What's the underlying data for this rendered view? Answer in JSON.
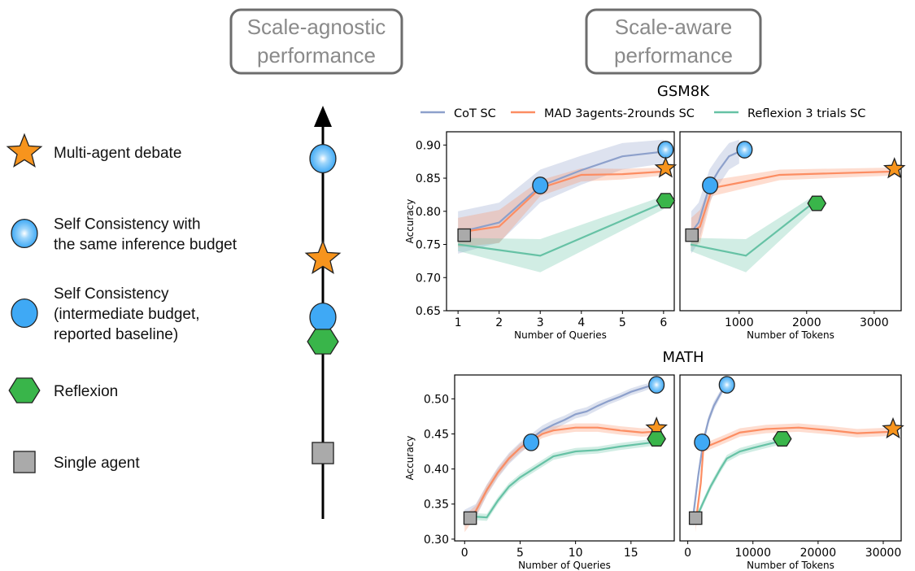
{
  "headers": {
    "agnostic_line1": "Scale-agnostic",
    "agnostic_line2": "performance",
    "aware_line1": "Scale-aware",
    "aware_line2": "performance"
  },
  "legend_left": [
    {
      "marker": "star",
      "lines": [
        "Multi-agent debate"
      ]
    },
    {
      "marker": "gradient-circle",
      "lines": [
        "Self Consistency with",
        "the same inference budget"
      ]
    },
    {
      "marker": "circle",
      "lines": [
        "Self Consistency",
        "(intermediate budget,",
        "reported baseline)"
      ]
    },
    {
      "marker": "hexagon",
      "lines": [
        "Reflexion"
      ]
    },
    {
      "marker": "square",
      "lines": [
        "Single agent"
      ]
    }
  ],
  "marker_colors": {
    "star": "#f7941d",
    "gradient-circle": "#3fa9f5",
    "circle": "#3fa9f5",
    "hexagon": "#39b54a",
    "square": "#aaaaaa"
  },
  "scale_agnostic_order_top_to_bottom": [
    "gradient-circle",
    "star",
    "circle",
    "hexagon",
    "square"
  ],
  "legend_top": [
    {
      "label": "CoT SC",
      "color": "#8da0cb"
    },
    {
      "label": "MAD 3agents-2rounds SC",
      "color": "#fc8d62"
    },
    {
      "label": "Reflexion 3 trials SC",
      "color": "#66c2a5"
    }
  ],
  "titles": {
    "gsm8k": "GSM8K",
    "math": "MATH"
  },
  "chart_data": [
    {
      "type": "line",
      "dataset": "GSM8K",
      "xlabel": "Number of Queries",
      "ylabel": "Accuracy",
      "xlim": [
        0.72,
        6.26
      ],
      "ylim": [
        0.65,
        0.92
      ],
      "xticks": [
        "1",
        "2",
        "3",
        "4",
        "5",
        "6"
      ],
      "yticks": [
        "0.65",
        "0.70",
        "0.75",
        "0.80",
        "0.85",
        "0.90"
      ],
      "series": [
        {
          "name": "CoT SC",
          "color": "#8da0cb",
          "x": [
            1,
            2,
            3,
            4,
            5,
            6
          ],
          "y": [
            0.768,
            0.783,
            0.838,
            0.862,
            0.883,
            0.89
          ],
          "band": [
            0.032,
            0.03,
            0.025,
            0.022,
            0.02,
            0.018
          ]
        },
        {
          "name": "MAD 3agents-2rounds SC",
          "color": "#fc8d62",
          "x": [
            1,
            2,
            3,
            4,
            5,
            6
          ],
          "y": [
            0.768,
            0.777,
            0.835,
            0.855,
            0.856,
            0.86
          ],
          "band": [
            0.022,
            0.025,
            0.012,
            0.01,
            0.008,
            0.006
          ]
        },
        {
          "name": "Reflexion 3 trials SC",
          "color": "#66c2a5",
          "x": [
            1,
            3,
            6
          ],
          "y": [
            0.75,
            0.733,
            0.813
          ],
          "band": [
            0.01,
            0.025,
            0.01
          ]
        }
      ],
      "markers": [
        {
          "type": "square",
          "x": 1.15,
          "y": 0.764
        },
        {
          "type": "circle",
          "x": 3,
          "y": 0.839
        },
        {
          "type": "gradient-circle",
          "x": 6.05,
          "y": 0.893
        },
        {
          "type": "star",
          "x": 6.05,
          "y": 0.865
        },
        {
          "type": "hexagon",
          "x": 6.05,
          "y": 0.816
        }
      ]
    },
    {
      "type": "line",
      "dataset": "GSM8K",
      "xlabel": "Number of Tokens",
      "ylabel": "",
      "xlim": [
        123,
        3400
      ],
      "ylim": [
        0.65,
        0.92
      ],
      "xticks": [
        "1000",
        "2000",
        "3000"
      ],
      "yticks": [],
      "series": [
        {
          "name": "CoT SC",
          "color": "#8da0cb",
          "x": [
            290,
            400,
            560,
            700,
            850,
            1000
          ],
          "y": [
            0.768,
            0.783,
            0.838,
            0.862,
            0.883,
            0.89
          ],
          "band": [
            0.032,
            0.03,
            0.025,
            0.022,
            0.02,
            0.018
          ]
        },
        {
          "name": "MAD 3agents-2rounds SC",
          "color": "#fc8d62",
          "x": [
            290,
            420,
            600,
            1100,
            1600,
            3300
          ],
          "y": [
            0.768,
            0.777,
            0.835,
            0.845,
            0.855,
            0.86
          ],
          "band": [
            0.022,
            0.025,
            0.012,
            0.01,
            0.008,
            0.006
          ]
        },
        {
          "name": "Reflexion 3 trials SC",
          "color": "#66c2a5",
          "x": [
            280,
            1100,
            2100
          ],
          "y": [
            0.75,
            0.733,
            0.813
          ],
          "band": [
            0.01,
            0.025,
            0.01
          ]
        }
      ],
      "markers": [
        {
          "type": "square",
          "x": 300,
          "y": 0.764
        },
        {
          "type": "circle",
          "x": 570,
          "y": 0.839
        },
        {
          "type": "gradient-circle",
          "x": 1080,
          "y": 0.893
        },
        {
          "type": "star",
          "x": 3300,
          "y": 0.864
        },
        {
          "type": "hexagon",
          "x": 2150,
          "y": 0.812
        }
      ]
    },
    {
      "type": "line",
      "dataset": "MATH",
      "xlabel": "Number of Queries",
      "ylabel": "Accuracy",
      "xlim": [
        -0.9,
        18.9
      ],
      "ylim": [
        0.2975,
        0.534
      ],
      "xticks": [
        "0",
        "5",
        "10",
        "15"
      ],
      "yticks": [
        "0.30",
        "0.35",
        "0.40",
        "0.45",
        "0.50"
      ],
      "series": [
        {
          "name": "CoT SC",
          "color": "#8da0cb",
          "x": [
            0,
            1,
            2,
            3,
            4,
            5,
            6,
            7,
            8,
            9,
            10,
            11,
            12,
            13,
            14,
            15,
            16,
            17
          ],
          "y": [
            0.33,
            0.34,
            0.37,
            0.395,
            0.415,
            0.43,
            0.443,
            0.455,
            0.463,
            0.47,
            0.478,
            0.482,
            0.49,
            0.497,
            0.503,
            0.51,
            0.515,
            0.52
          ],
          "band": [
            0.012,
            0.01,
            0.008,
            0.008,
            0.008,
            0.008,
            0.007,
            0.007,
            0.007,
            0.006,
            0.006,
            0.006,
            0.006,
            0.005,
            0.005,
            0.005,
            0.005,
            0.004
          ]
        },
        {
          "name": "MAD 3agents-2rounds SC",
          "color": "#fc8d62",
          "x": [
            0,
            1,
            2,
            3,
            4,
            5,
            6,
            7,
            8,
            9,
            10,
            12,
            14,
            16,
            17
          ],
          "y": [
            0.322,
            0.34,
            0.37,
            0.395,
            0.415,
            0.43,
            0.44,
            0.45,
            0.455,
            0.457,
            0.459,
            0.459,
            0.455,
            0.452,
            0.453
          ],
          "band": [
            0.012,
            0.008,
            0.007,
            0.006,
            0.006,
            0.006,
            0.006,
            0.006,
            0.006,
            0.006,
            0.006,
            0.006,
            0.006,
            0.006,
            0.006
          ]
        },
        {
          "name": "Reflexion 3 trials SC",
          "color": "#66c2a5",
          "x": [
            0,
            1,
            2,
            3,
            4,
            5,
            6,
            7,
            8,
            10,
            12,
            14,
            16,
            17
          ],
          "y": [
            0.33,
            0.332,
            0.331,
            0.355,
            0.375,
            0.388,
            0.398,
            0.408,
            0.418,
            0.425,
            0.427,
            0.432,
            0.436,
            0.438
          ],
          "band": [
            0.005,
            0.005,
            0.005,
            0.005,
            0.005,
            0.005,
            0.005,
            0.005,
            0.005,
            0.005,
            0.005,
            0.005,
            0.005,
            0.005
          ]
        }
      ],
      "markers": [
        {
          "type": "square",
          "x": 0.5,
          "y": 0.33
        },
        {
          "type": "circle",
          "x": 6,
          "y": 0.438
        },
        {
          "type": "gradient-circle",
          "x": 17.3,
          "y": 0.52
        },
        {
          "type": "star",
          "x": 17.3,
          "y": 0.458
        },
        {
          "type": "hexagon",
          "x": 17.3,
          "y": 0.443
        }
      ]
    },
    {
      "type": "line",
      "dataset": "MATH",
      "xlabel": "Number of Tokens",
      "ylabel": "",
      "xlim": [
        -1200,
        32750
      ],
      "ylim": [
        0.2975,
        0.534
      ],
      "xticks": [
        "0",
        "10000",
        "20000",
        "30000"
      ],
      "yticks": [],
      "series": [
        {
          "name": "CoT SC",
          "color": "#8da0cb",
          "x": [
            800,
            1600,
            2400,
            3200,
            4000,
            5000,
            5800
          ],
          "y": [
            0.33,
            0.39,
            0.44,
            0.47,
            0.49,
            0.507,
            0.52
          ],
          "band": [
            0.012,
            0.008,
            0.007,
            0.006,
            0.006,
            0.005,
            0.004
          ]
        },
        {
          "name": "MAD 3agents-2rounds SC",
          "color": "#fc8d62",
          "x": [
            1200,
            2000,
            2400,
            5000,
            8000,
            12000,
            17000,
            22000,
            26000,
            31000
          ],
          "y": [
            0.322,
            0.38,
            0.43,
            0.44,
            0.452,
            0.457,
            0.459,
            0.455,
            0.451,
            0.453
          ],
          "band": [
            0.012,
            0.008,
            0.006,
            0.006,
            0.006,
            0.006,
            0.006,
            0.006,
            0.006,
            0.006
          ]
        },
        {
          "name": "Reflexion 3 trials SC",
          "color": "#66c2a5",
          "x": [
            1300,
            2500,
            3500,
            5000,
            6000,
            8000,
            10000,
            13000,
            14500
          ],
          "y": [
            0.33,
            0.355,
            0.375,
            0.4,
            0.415,
            0.425,
            0.43,
            0.437,
            0.44
          ],
          "band": [
            0.005,
            0.005,
            0.005,
            0.005,
            0.005,
            0.005,
            0.005,
            0.005,
            0.005
          ]
        }
      ],
      "markers": [
        {
          "type": "square",
          "x": 1200,
          "y": 0.33
        },
        {
          "type": "circle",
          "x": 2200,
          "y": 0.438
        },
        {
          "type": "gradient-circle",
          "x": 6000,
          "y": 0.52
        },
        {
          "type": "star",
          "x": 31500,
          "y": 0.457
        },
        {
          "type": "hexagon",
          "x": 14500,
          "y": 0.443
        }
      ]
    }
  ]
}
